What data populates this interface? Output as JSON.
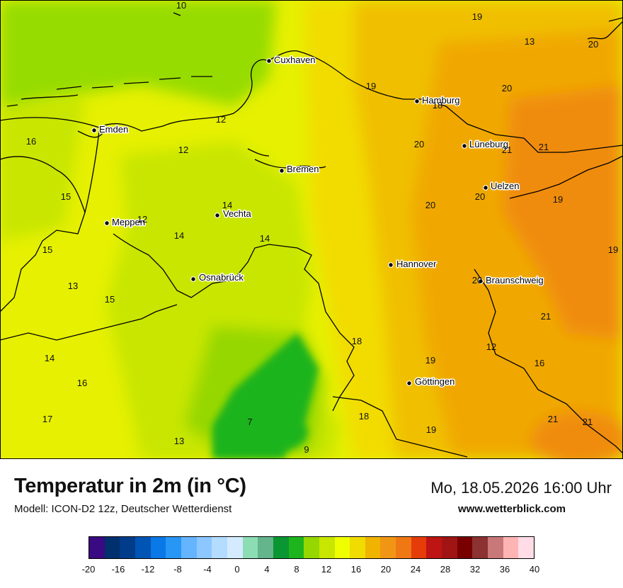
{
  "map": {
    "cities": [
      {
        "name": "Cuxhaven"
      },
      {
        "name": "Hamburg"
      },
      {
        "name": "Emden"
      },
      {
        "name": "Lüneburg"
      },
      {
        "name": "Bremen"
      },
      {
        "name": "Uelzen"
      },
      {
        "name": "Vechta"
      },
      {
        "name": "Meppen"
      },
      {
        "name": "Osnabrück"
      },
      {
        "name": "Hannover"
      },
      {
        "name": "Braunschweig"
      },
      {
        "name": "Göttingen"
      }
    ],
    "temperature_labels": [
      "10",
      "19",
      "13",
      "20",
      "19",
      "18",
      "20",
      "12",
      "16",
      "12",
      "20",
      "21",
      "21",
      "14",
      "15",
      "20",
      "20",
      "19",
      "12",
      "14",
      "14",
      "15",
      "19",
      "13",
      "15",
      "20",
      "21",
      "18",
      "12",
      "14",
      "16",
      "19",
      "16",
      "18",
      "21",
      "21",
      "17",
      "13",
      "7",
      "9",
      "19"
    ]
  },
  "info": {
    "title": "Temperatur in 2m (in °C)",
    "model": "Modell: ICON-D2 12z, Deutscher Wetterdienst",
    "datetime": "Mo, 18.05.2026 16:00 Uhr",
    "website": "www.wetterblick.com"
  },
  "legend": {
    "ticks": [
      "-20",
      "-16",
      "-12",
      "-8",
      "-4",
      "0",
      "4",
      "8",
      "12",
      "16",
      "20",
      "24",
      "28",
      "32",
      "36",
      "40"
    ],
    "colors": [
      "#3a0a82",
      "#00306e",
      "#003c8a",
      "#0055b4",
      "#0a78e6",
      "#2896f5",
      "#64b4ff",
      "#8cc8ff",
      "#b4dcff",
      "#d4ebff",
      "#8cdcb4",
      "#64b48c",
      "#0a9632",
      "#1eb41e",
      "#96d700",
      "#c8e600",
      "#f0ff00",
      "#f0dc00",
      "#f0b400",
      "#f09614",
      "#f07814",
      "#e63c0a",
      "#be1414",
      "#a01414",
      "#780000",
      "#8c3232",
      "#c87878",
      "#ffb4b4",
      "#ffdce6"
    ]
  }
}
